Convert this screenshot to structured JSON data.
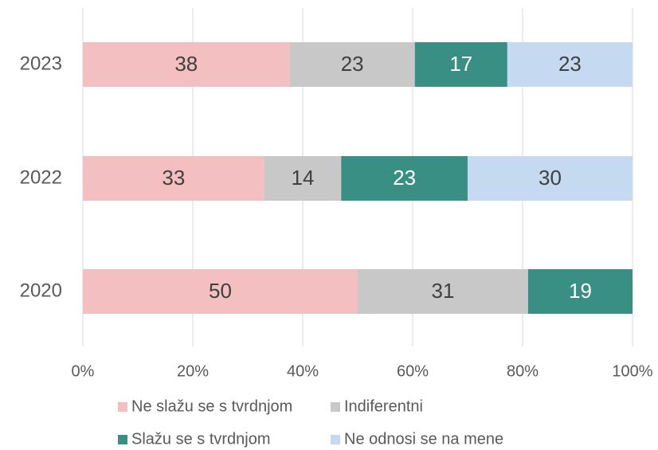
{
  "chart_data": {
    "type": "bar",
    "orientation": "horizontal",
    "stacked": "percent",
    "categories": [
      "2023",
      "2022",
      "2020"
    ],
    "series": [
      {
        "name": "Ne slažu se s tvrdnjom",
        "color": "#f4bfc1",
        "values": [
          38,
          33,
          50
        ]
      },
      {
        "name": "Indiferentni",
        "color": "#c8c8c8",
        "values": [
          23,
          14,
          31
        ]
      },
      {
        "name": "Slažu se s tvrdnjom",
        "color": "#3a8f84",
        "values": [
          17,
          23,
          19
        ]
      },
      {
        "name": "Ne odnosi se na mene",
        "color": "#c5d9f0",
        "values": [
          23,
          30,
          null
        ]
      }
    ],
    "xlim": [
      0,
      100
    ],
    "xticks": [
      {
        "value": 0,
        "label": "0%"
      },
      {
        "value": 20,
        "label": "20%"
      },
      {
        "value": 40,
        "label": "40%"
      },
      {
        "value": 60,
        "label": "60%"
      },
      {
        "value": 80,
        "label": "80%"
      },
      {
        "value": 100,
        "label": "100%"
      }
    ],
    "grid": true,
    "legend": "bottom"
  }
}
